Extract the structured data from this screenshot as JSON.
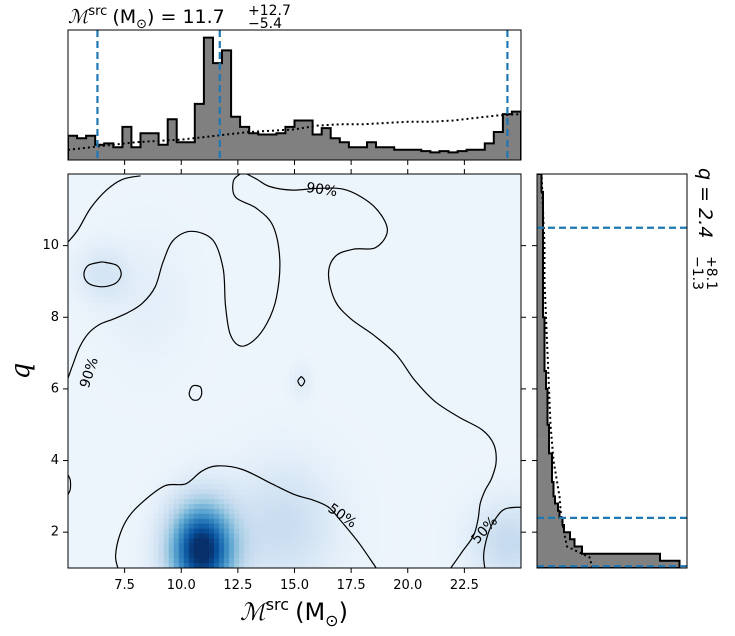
{
  "chart_data": [
    {
      "panel": "joint",
      "type": "heatmap",
      "colormap": "Blues",
      "xlabel": "ℳ",
      "xlabel_sup": "src",
      "xlabel_units": "(M",
      "xlabel_units_sub": "⊙",
      "xlabel_units_close": ")",
      "ylabel": "q",
      "xlim": [
        5,
        25
      ],
      "ylim": [
        1,
        12
      ],
      "xticks": [
        7.5,
        10.0,
        12.5,
        15.0,
        17.5,
        20.0,
        22.5
      ],
      "xtick_labels": [
        "7.5",
        "10.0",
        "12.5",
        "15.0",
        "17.5",
        "20.0",
        "22.5"
      ],
      "yticks": [
        2,
        4,
        6,
        8,
        10
      ],
      "ytick_labels": [
        "2",
        "4",
        "6",
        "8",
        "10"
      ],
      "density_peaks": [
        {
          "x": 10.9,
          "y": 1.5,
          "weight": 1.0
        },
        {
          "x": 14.5,
          "y": 2.2,
          "weight": 0.18
        },
        {
          "x": 24.5,
          "y": 1.7,
          "weight": 0.2
        },
        {
          "x": 6.5,
          "y": 9.2,
          "weight": 0.12
        },
        {
          "x": 8.5,
          "y": 8.5,
          "weight": 0.05
        },
        {
          "x": 15.3,
          "y": 6.2,
          "weight": 0.07
        }
      ],
      "contour_labels": [
        {
          "text": "90%",
          "x": 16.2,
          "y": 11.55,
          "angle": 8
        },
        {
          "text": "90%",
          "x": 5.95,
          "y": 6.45,
          "angle": -72
        },
        {
          "text": "50%",
          "x": 17.1,
          "y": 2.45,
          "angle": 35
        },
        {
          "text": "50%",
          "x": 23.4,
          "y": 2.05,
          "angle": -48
        }
      ],
      "contours": {
        "90%": [
          [
            [
              8.2,
              11.95
            ],
            [
              7.4,
              11.85
            ],
            [
              6.7,
              11.55
            ],
            [
              6.0,
              11.05
            ],
            [
              5.45,
              10.45
            ],
            [
              5.0,
              10.1
            ]
          ],
          [
            [
              5.0,
              6.3
            ],
            [
              5.2,
              6.65
            ],
            [
              5.5,
              7.15
            ],
            [
              5.9,
              7.55
            ],
            [
              6.4,
              7.8
            ],
            [
              7.0,
              7.95
            ],
            [
              7.7,
              8.15
            ],
            [
              8.3,
              8.4
            ],
            [
              8.85,
              8.85
            ],
            [
              9.2,
              9.55
            ],
            [
              9.65,
              10.15
            ],
            [
              10.45,
              10.4
            ],
            [
              11.4,
              10.15
            ],
            [
              11.85,
              9.35
            ],
            [
              11.95,
              8.35
            ],
            [
              12.15,
              7.55
            ],
            [
              12.6,
              7.2
            ],
            [
              13.2,
              7.35
            ],
            [
              13.8,
              7.85
            ],
            [
              14.2,
              8.55
            ],
            [
              14.35,
              9.6
            ],
            [
              14.05,
              10.55
            ],
            [
              13.3,
              11.05
            ],
            [
              12.4,
              11.35
            ],
            [
              12.3,
              11.8
            ],
            [
              12.6,
              12.0
            ]
          ],
          [
            [
              12.9,
              12.0
            ],
            [
              13.35,
              11.85
            ],
            [
              13.9,
              11.65
            ],
            [
              14.9,
              11.55
            ],
            [
              16.1,
              11.6
            ],
            [
              17.3,
              11.55
            ],
            [
              18.5,
              11.1
            ],
            [
              19.1,
              10.45
            ],
            [
              18.6,
              9.95
            ],
            [
              17.6,
              9.9
            ],
            [
              16.8,
              9.7
            ],
            [
              16.5,
              9.2
            ],
            [
              16.8,
              8.45
            ],
            [
              17.5,
              7.95
            ],
            [
              18.5,
              7.5
            ],
            [
              19.5,
              6.95
            ],
            [
              20.3,
              6.25
            ],
            [
              21.2,
              5.65
            ],
            [
              22.3,
              5.2
            ],
            [
              23.3,
              4.85
            ],
            [
              23.8,
              4.45
            ],
            [
              23.9,
              3.95
            ],
            [
              23.7,
              3.5
            ],
            [
              23.4,
              3.15
            ],
            [
              23.2,
              2.8
            ],
            [
              23.1,
              2.35
            ],
            [
              22.9,
              1.9
            ],
            [
              22.4,
              1.45
            ],
            [
              21.9,
              1.0
            ]
          ]
        ],
        "90%_islands": [
          [
            [
              6.5,
              9.55
            ],
            [
              7.15,
              9.45
            ],
            [
              7.35,
              9.2
            ],
            [
              7.1,
              8.95
            ],
            [
              6.5,
              8.85
            ],
            [
              5.9,
              8.95
            ],
            [
              5.7,
              9.2
            ],
            [
              5.9,
              9.45
            ],
            [
              6.5,
              9.55
            ]
          ],
          [
            [
              10.6,
              6.1
            ],
            [
              10.85,
              6.05
            ],
            [
              10.9,
              5.85
            ],
            [
              10.75,
              5.7
            ],
            [
              10.5,
              5.7
            ],
            [
              10.35,
              5.85
            ],
            [
              10.45,
              6.05
            ],
            [
              10.6,
              6.1
            ]
          ],
          [
            [
              15.3,
              6.35
            ],
            [
              15.45,
              6.22
            ],
            [
              15.3,
              6.08
            ],
            [
              15.15,
              6.22
            ],
            [
              15.3,
              6.35
            ]
          ],
          [
            [
              5.0,
              3.6
            ],
            [
              5.1,
              3.45
            ],
            [
              5.1,
              3.2
            ],
            [
              5.0,
              3.05
            ]
          ]
        ],
        "50%": [
          [
            [
              7.2,
              1.0
            ],
            [
              7.1,
              1.35
            ],
            [
              7.3,
              1.95
            ],
            [
              7.7,
              2.45
            ],
            [
              8.4,
              2.9
            ],
            [
              9.3,
              3.3
            ],
            [
              10.2,
              3.35
            ],
            [
              10.9,
              3.7
            ],
            [
              11.6,
              3.85
            ],
            [
              12.7,
              3.75
            ],
            [
              14.0,
              3.35
            ],
            [
              15.0,
              3.05
            ],
            [
              15.8,
              2.9
            ],
            [
              16.5,
              2.7
            ],
            [
              17.0,
              2.35
            ],
            [
              17.4,
              2.05
            ],
            [
              17.9,
              1.65
            ],
            [
              18.5,
              1.1
            ],
            [
              18.6,
              1.0
            ]
          ],
          [
            [
              25.0,
              2.7
            ],
            [
              24.3,
              2.65
            ],
            [
              23.9,
              2.4
            ],
            [
              23.6,
              2.05
            ],
            [
              23.4,
              1.6
            ],
            [
              23.35,
              1.3
            ],
            [
              23.4,
              1.0
            ]
          ]
        ]
      }
    },
    {
      "panel": "top-marginal",
      "type": "bar",
      "title_prefix": "ℳ",
      "title_sup": "src",
      "title_units": "(M",
      "title_units_sub": "⊙",
      "title_units_close": ") = 11.7",
      "title_plus": "+12.7",
      "title_minus": "−5.4",
      "xlim": [
        5,
        25
      ],
      "median": 11.7,
      "bounds": [
        6.3,
        24.4
      ],
      "bin_edges": [
        5.0,
        5.4,
        5.8,
        6.2,
        6.6,
        7.0,
        7.4,
        7.8,
        8.2,
        8.6,
        9.0,
        9.4,
        9.8,
        10.2,
        10.6,
        11.0,
        11.4,
        11.8,
        12.2,
        12.6,
        13.0,
        13.4,
        13.8,
        14.2,
        14.6,
        15.0,
        15.4,
        15.8,
        16.2,
        16.6,
        17.0,
        17.4,
        17.8,
        18.2,
        18.6,
        19.0,
        19.4,
        19.8,
        20.2,
        20.6,
        21.0,
        21.4,
        21.8,
        22.2,
        22.6,
        23.0,
        23.4,
        23.8,
        24.2,
        24.6,
        25.0
      ],
      "counts": [
        0.19,
        0.17,
        0.19,
        0.12,
        0.13,
        0.1,
        0.26,
        0.1,
        0.21,
        0.21,
        0.12,
        0.32,
        0.14,
        0.14,
        0.44,
        0.96,
        0.76,
        0.86,
        0.34,
        0.26,
        0.21,
        0.2,
        0.2,
        0.21,
        0.26,
        0.31,
        0.31,
        0.2,
        0.25,
        0.17,
        0.14,
        0.1,
        0.1,
        0.14,
        0.1,
        0.1,
        0.08,
        0.08,
        0.08,
        0.07,
        0.06,
        0.07,
        0.06,
        0.07,
        0.08,
        0.08,
        0.13,
        0.22,
        0.36,
        0.38
      ],
      "ylim_max": 1.02,
      "prior": {
        "x": [
          5.0,
          6.0,
          7.0,
          8.0,
          9.0,
          10.0,
          11.0,
          12.0,
          13.0,
          14.0,
          15.0,
          16.0,
          17.0,
          18.0,
          19.0,
          20.0,
          21.0,
          22.0,
          23.0,
          24.0,
          25.0
        ],
        "y": [
          0.08,
          0.1,
          0.12,
          0.14,
          0.15,
          0.16,
          0.18,
          0.2,
          0.22,
          0.23,
          0.24,
          0.27,
          0.28,
          0.28,
          0.29,
          0.3,
          0.3,
          0.31,
          0.33,
          0.35,
          0.36
        ]
      }
    },
    {
      "panel": "right-marginal",
      "type": "bar",
      "orientation": "horizontal",
      "title_prefix": "q = 2.4",
      "title_plus": "+8.1",
      "title_minus": "−1.3",
      "ylim": [
        1,
        12
      ],
      "median": 2.4,
      "bounds": [
        1.05,
        10.5
      ],
      "bin_edges": [
        1.0,
        1.2,
        1.4,
        1.6,
        1.8,
        2.0,
        2.2,
        2.4,
        2.6,
        2.8,
        3.0,
        3.4,
        3.8,
        4.2,
        4.6,
        5.0,
        5.5,
        6.0,
        6.5,
        7.0,
        7.5,
        8.0,
        8.5,
        9.0,
        9.5,
        10.0,
        10.5,
        11.0,
        11.5,
        12.0
      ],
      "counts": [
        0.95,
        0.82,
        0.3,
        0.25,
        0.22,
        0.18,
        0.17,
        0.15,
        0.14,
        0.12,
        0.11,
        0.1,
        0.1,
        0.08,
        0.08,
        0.07,
        0.07,
        0.06,
        0.05,
        0.05,
        0.05,
        0.04,
        0.04,
        0.04,
        0.04,
        0.04,
        0.04,
        0.04,
        0.03
      ],
      "xlim_max": 1.0,
      "prior": {
        "y": [
          1.0,
          1.3,
          1.6,
          2.0,
          2.5,
          3.0,
          3.5,
          4.0,
          5.0,
          6.0,
          7.0,
          8.0,
          9.0,
          10.0,
          11.0,
          12.0
        ],
        "x": [
          0.37,
          0.35,
          0.2,
          0.18,
          0.16,
          0.15,
          0.13,
          0.11,
          0.09,
          0.08,
          0.07,
          0.06,
          0.05,
          0.05,
          0.04,
          0.03
        ]
      }
    }
  ]
}
